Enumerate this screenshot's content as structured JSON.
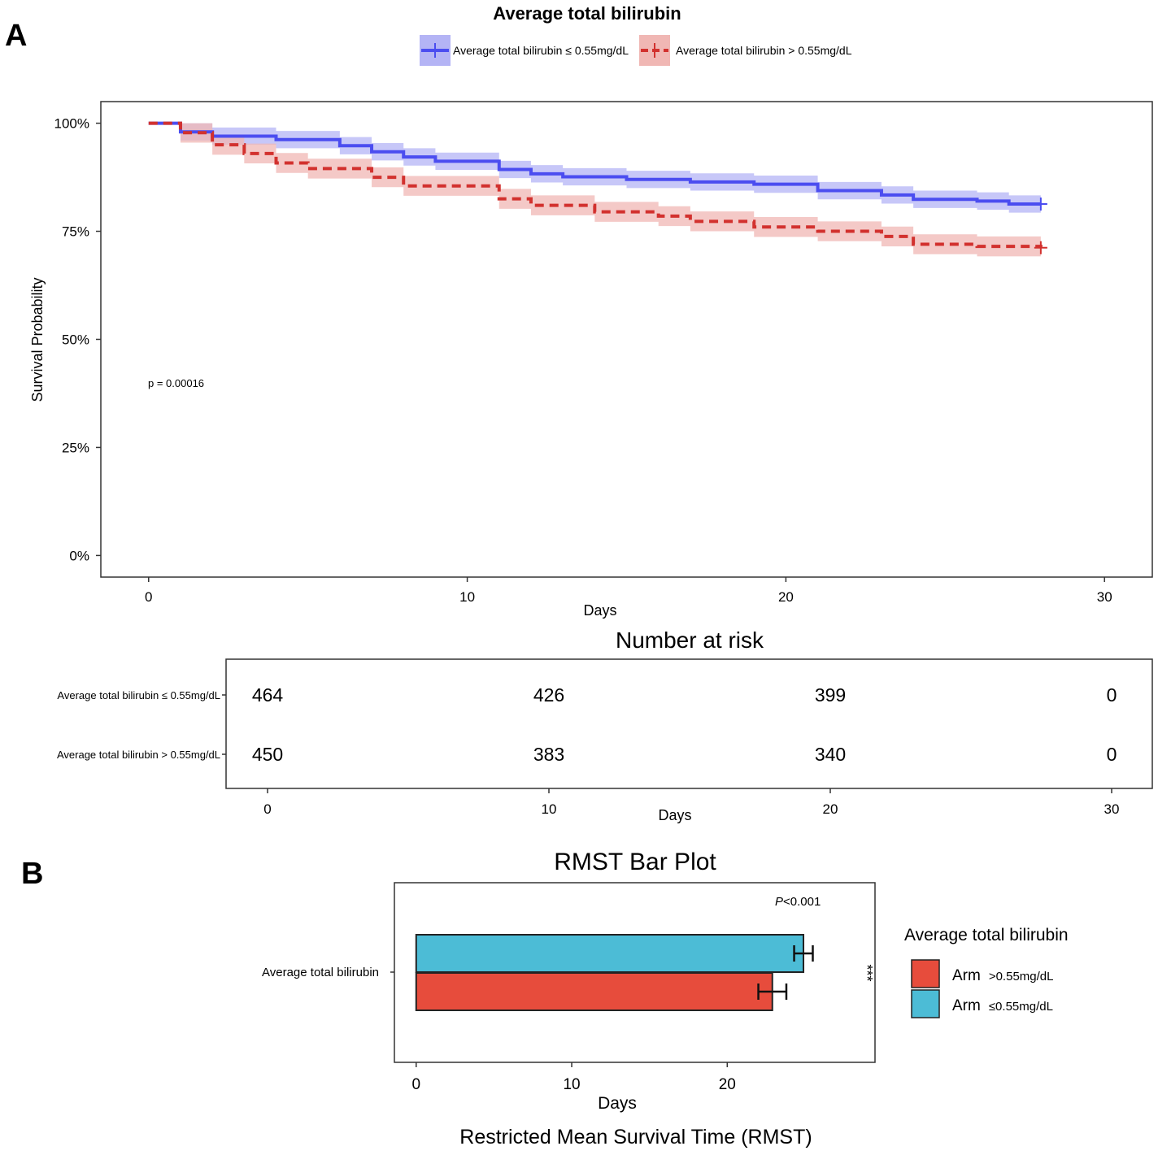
{
  "panel_a_label": "A",
  "panel_b_label": "B",
  "colors": {
    "low": "#4b4df0",
    "high": "#d2312e",
    "low_band": "#b4b4f5",
    "high_band": "#f0b7b4",
    "bar_low": "#4cbcd6",
    "bar_high": "#e74c3c"
  },
  "chart_data": [
    {
      "type": "line",
      "subtype": "kaplan-meier",
      "title": "Average total bilirubin",
      "xlabel": "Days",
      "ylabel": "Survival Probability",
      "xlim": [
        -1.5,
        31.5
      ],
      "ylim": [
        -0.05,
        1.05
      ],
      "xticks": [
        0,
        10,
        20,
        30
      ],
      "yticks": [
        0,
        0.25,
        0.5,
        0.75,
        1.0
      ],
      "ytick_labels": [
        "0%",
        "25%",
        "50%",
        "75%",
        "100%"
      ],
      "annotation": "p = 0.00016",
      "legend_position": "top",
      "series": [
        {
          "name": "Average total bilirubin ≤ 0.55mg/dL",
          "key": "low",
          "style": "solid",
          "x": [
            0,
            1,
            2,
            4,
            6,
            7,
            8,
            9,
            11,
            12,
            13,
            15,
            17,
            19,
            21,
            23,
            24,
            26,
            27,
            28
          ],
          "y": [
            1.0,
            0.98,
            0.97,
            0.962,
            0.948,
            0.934,
            0.922,
            0.912,
            0.893,
            0.883,
            0.876,
            0.87,
            0.864,
            0.859,
            0.844,
            0.834,
            0.824,
            0.82,
            0.813,
            0.813
          ],
          "ci_halfwidth": 0.02
        },
        {
          "name": "Average total bilirubin > 0.55mg/dL",
          "key": "high",
          "style": "dashed",
          "x": [
            0,
            1,
            2,
            3,
            4,
            5,
            7,
            8,
            11,
            12,
            14,
            16,
            17,
            19,
            21,
            23,
            24,
            26,
            28
          ],
          "y": [
            1.0,
            0.978,
            0.95,
            0.93,
            0.908,
            0.895,
            0.875,
            0.855,
            0.825,
            0.81,
            0.795,
            0.785,
            0.773,
            0.76,
            0.75,
            0.738,
            0.72,
            0.715,
            0.712
          ],
          "ci_halfwidth": 0.023
        }
      ]
    },
    {
      "type": "table",
      "title": "Number at risk",
      "xlabel": "Days",
      "xticks": [
        0,
        10,
        20,
        30
      ],
      "rows": [
        {
          "label": "Average total bilirubin ≤ 0.55mg/dL",
          "values": [
            "464",
            "426",
            "399",
            "0"
          ]
        },
        {
          "label": "Average total bilirubin > 0.55mg/dL",
          "values": [
            "450",
            "383",
            "340",
            "0"
          ]
        }
      ]
    },
    {
      "type": "bar",
      "orientation": "horizontal",
      "title": "RMST Bar Plot",
      "xlabel": "Days",
      "caption": "Restricted Mean Survival Time (RMST)",
      "category": "Average total bilirubin",
      "xlim": [
        -1.4,
        29.5
      ],
      "xticks": [
        0,
        10,
        20
      ],
      "annotation_p_italic": "P",
      "annotation_p_rest": "<0.001",
      "significance": "***",
      "legend_title": "Average total bilirubin",
      "series": [
        {
          "name": "Arm",
          "suffix": ">0.55mg/dL",
          "key": "high",
          "value": 22.9,
          "err": 0.9
        },
        {
          "name": "Arm",
          "suffix": "≤0.55mg/dL",
          "key": "low",
          "value": 24.9,
          "err": 0.6
        }
      ]
    }
  ]
}
